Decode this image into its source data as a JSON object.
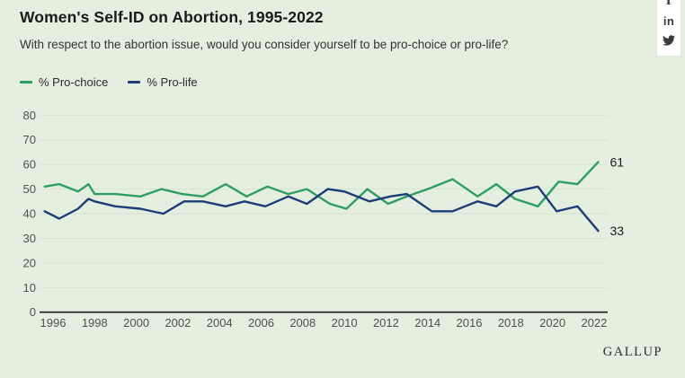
{
  "page": {
    "background_color": "#e5efdf"
  },
  "header": {
    "title": "Women's Self-ID on Abortion, 1995-2022",
    "subtitle": "With respect to the abortion issue, would you consider yourself to be pro-choice or pro-life?"
  },
  "legend": [
    {
      "label": "% Pro-choice",
      "color": "#2f9e62"
    },
    {
      "label": "% Pro-life",
      "color": "#1e3d78"
    }
  ],
  "social": {
    "icons": [
      "facebook-icon",
      "linkedin-icon",
      "twitter-icon"
    ],
    "facebook_glyph": "f",
    "linkedin_glyph": "in"
  },
  "footer": {
    "brand": "GALLUP"
  },
  "chart_data": {
    "type": "line",
    "title": "Women's Self-ID on Abortion, 1995-2022",
    "question": "With respect to the abortion issue, would you consider yourself to be pro-choice or pro-life?",
    "xlabel": "",
    "ylabel": "",
    "xlim": [
      1995,
      2023
    ],
    "ylim": [
      0,
      80
    ],
    "grid": true,
    "legend_position": "top-left",
    "x_ticks": [
      1996,
      1998,
      2000,
      2002,
      2004,
      2006,
      2008,
      2010,
      2012,
      2014,
      2016,
      2018,
      2020,
      2022
    ],
    "y_ticks": [
      0,
      10,
      20,
      30,
      40,
      50,
      60,
      70,
      80
    ],
    "axis_color": "#1b1b1b",
    "grid_color": "#d6e2d2",
    "series": [
      {
        "name": "% Pro-choice",
        "color": "#2f9e62",
        "end_label": "61",
        "points": [
          [
            1995.6,
            51
          ],
          [
            1996.3,
            52
          ],
          [
            1997.2,
            49
          ],
          [
            1997.7,
            52
          ],
          [
            1998.0,
            48
          ],
          [
            1999.0,
            48
          ],
          [
            2000.2,
            47
          ],
          [
            2001.2,
            50
          ],
          [
            2002.2,
            48
          ],
          [
            2003.2,
            47
          ],
          [
            2004.3,
            52
          ],
          [
            2005.3,
            47
          ],
          [
            2006.3,
            51
          ],
          [
            2007.3,
            48
          ],
          [
            2008.2,
            50
          ],
          [
            2009.3,
            44
          ],
          [
            2010.1,
            42
          ],
          [
            2011.1,
            50
          ],
          [
            2012.1,
            44
          ],
          [
            2013.0,
            47
          ],
          [
            2014.0,
            50
          ],
          [
            2015.2,
            54
          ],
          [
            2016.4,
            47
          ],
          [
            2017.3,
            52
          ],
          [
            2018.2,
            46
          ],
          [
            2019.3,
            43
          ],
          [
            2020.3,
            53
          ],
          [
            2021.2,
            52
          ],
          [
            2022.2,
            61
          ]
        ]
      },
      {
        "name": "% Pro-life",
        "color": "#1e3d78",
        "end_label": "33",
        "points": [
          [
            1995.6,
            41
          ],
          [
            1996.3,
            38
          ],
          [
            1997.2,
            42
          ],
          [
            1997.7,
            46
          ],
          [
            1998.0,
            45
          ],
          [
            1999.0,
            43
          ],
          [
            2000.2,
            42
          ],
          [
            2001.3,
            40
          ],
          [
            2002.3,
            45
          ],
          [
            2003.2,
            45
          ],
          [
            2004.3,
            43
          ],
          [
            2005.2,
            45
          ],
          [
            2006.2,
            43
          ],
          [
            2007.3,
            47
          ],
          [
            2008.2,
            44
          ],
          [
            2009.2,
            50
          ],
          [
            2010.0,
            49
          ],
          [
            2011.2,
            45
          ],
          [
            2012.2,
            47
          ],
          [
            2013.0,
            48
          ],
          [
            2014.2,
            41
          ],
          [
            2015.2,
            41
          ],
          [
            2016.4,
            45
          ],
          [
            2017.3,
            43
          ],
          [
            2018.2,
            49
          ],
          [
            2019.3,
            51
          ],
          [
            2020.2,
            41
          ],
          [
            2021.2,
            43
          ],
          [
            2022.2,
            33
          ]
        ]
      }
    ]
  }
}
